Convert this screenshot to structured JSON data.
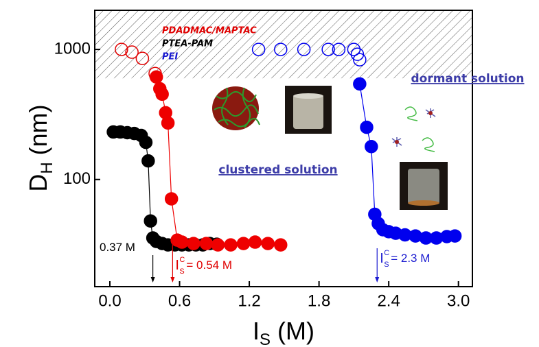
{
  "chart_data": {
    "type": "scatter",
    "x_label": {
      "main": "I",
      "sub": "S",
      "rest": " (M)"
    },
    "y_label": {
      "main": "D",
      "sub": "H",
      "rest": " (nm)"
    },
    "xlim": [
      -0.13,
      3.12
    ],
    "xticks": [
      {
        "value": 0,
        "label": "0.0"
      },
      0.6,
      1.2,
      1.8,
      2.4,
      {
        "value": 3,
        "label": "3.0"
      }
    ],
    "ylim": [
      15,
      2000
    ],
    "yticks": [
      100,
      1000
    ],
    "log_y": true,
    "shaded_region_min": 600,
    "legend": [
      {
        "text": "PDADMAC/MAPTAC",
        "color": "#e00000"
      },
      {
        "text": "PTEA-PAM",
        "color": "#000000"
      },
      {
        "text": "PEI",
        "color": "#1a1ad0"
      }
    ],
    "series": [
      {
        "color": "#e00000",
        "filled": false,
        "x": [
          0.1,
          0.19,
          0.28,
          0.39
        ],
        "values": [
          1000,
          953,
          853,
          653
        ]
      },
      {
        "color": "#0000ee",
        "filled": false,
        "x": [
          1.28,
          1.47,
          1.67,
          1.88,
          1.97,
          2.1,
          2.13,
          2.15
        ],
        "values": [
          1000,
          1000,
          1000,
          1000,
          1000,
          1000,
          918,
          833
        ]
      },
      {
        "color": "#000000",
        "filled": true,
        "x": [
          0.03,
          0.09,
          0.15,
          0.21,
          0.27,
          0.31,
          0.33,
          0.35,
          0.37,
          0.4,
          0.45,
          0.5,
          0.56,
          0.62,
          0.68,
          0.74,
          0.8,
          0.86,
          0.92
        ],
        "values": [
          232,
          232,
          229,
          226,
          218,
          193,
          139,
          48,
          35.5,
          33.4,
          32.2,
          31.4,
          31.4,
          31.4,
          31.4,
          31.4,
          31.4,
          32.2,
          31.8
        ]
      },
      {
        "color": "#ee0000",
        "filled": true,
        "x": [
          0.4,
          0.43,
          0.45,
          0.48,
          0.5,
          0.53,
          0.58,
          0.62,
          0.72,
          0.83,
          0.93,
          1.04,
          1.15,
          1.25,
          1.36,
          1.47
        ],
        "values": [
          614,
          499,
          453,
          326,
          272,
          71,
          34.2,
          33,
          32.2,
          32.2,
          31.4,
          31.4,
          32.2,
          33,
          32.2,
          31.4
        ]
      },
      {
        "color": "#0000ee",
        "filled": true,
        "x": [
          2.15,
          2.21,
          2.25,
          2.28,
          2.31,
          2.35,
          2.4,
          2.46,
          2.54,
          2.63,
          2.72,
          2.81,
          2.9,
          2.97
        ],
        "values": [
          543,
          252,
          179,
          54,
          45.8,
          41.1,
          39.7,
          38.6,
          37.5,
          36.8,
          35.5,
          35.5,
          36.4,
          36.8
        ]
      }
    ],
    "annotations": [
      {
        "text": "0.37 M",
        "x": 0.37,
        "color": "#000000"
      },
      {
        "main": "I",
        "sub": "S",
        "sup": "C",
        "text": "= 0.54 M",
        "x": 0.54,
        "color": "#e00000"
      },
      {
        "main": "I",
        "sub": "S",
        "sup": "C",
        "text": "= 2.3 M",
        "x": 2.3,
        "color": "#1a1ad0"
      }
    ],
    "notes": [
      "dormant solution",
      "clustered solution"
    ]
  }
}
